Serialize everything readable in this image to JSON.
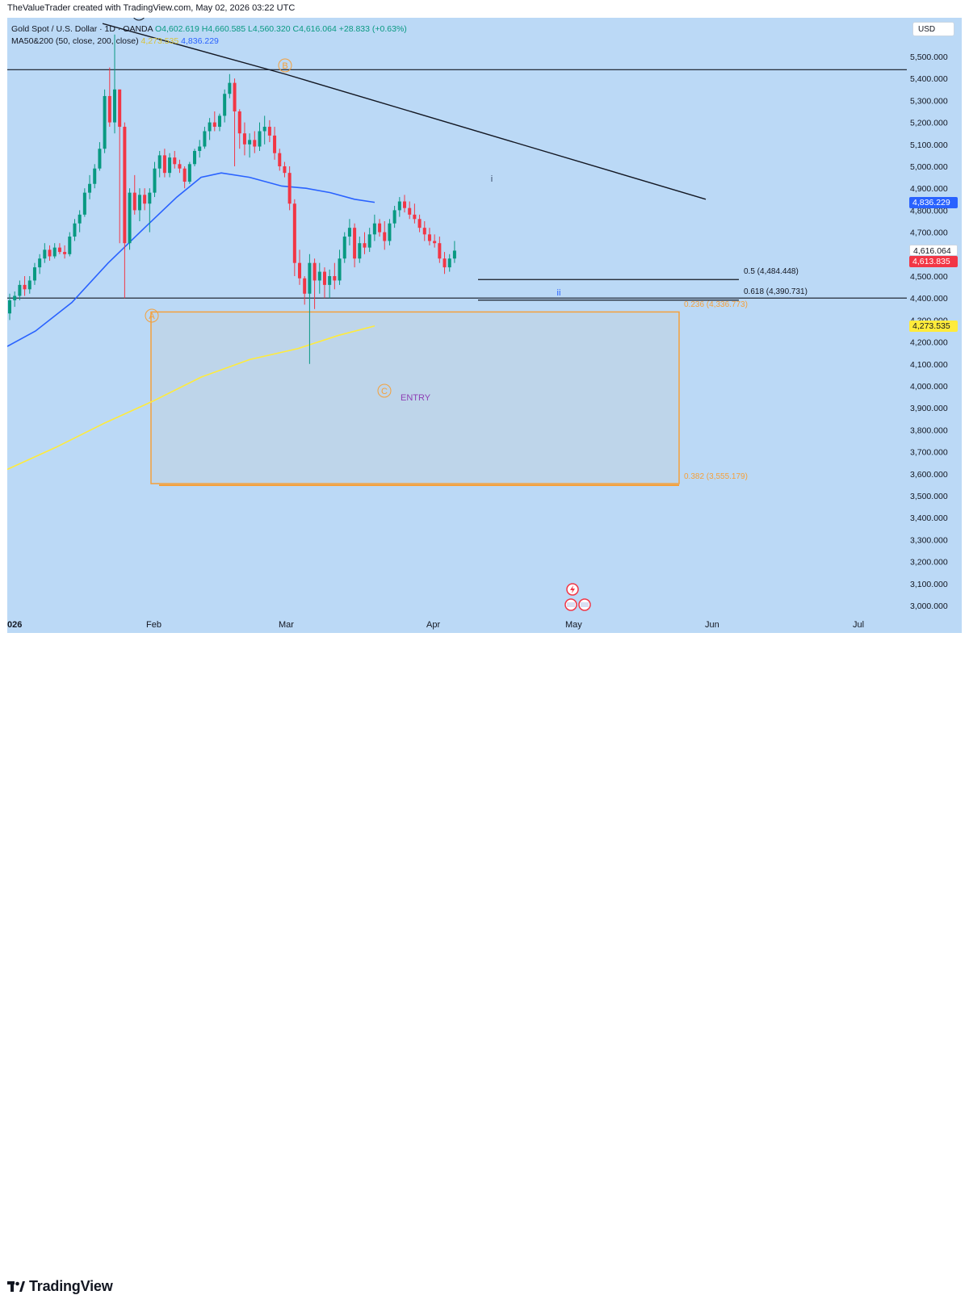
{
  "header": {
    "text": "TheValueTrader created with TradingView.com, May 02, 2026 03:22 UTC"
  },
  "legend": {
    "symbol": "Gold Spot / U.S. Dollar · 1D · OANDA",
    "open": "O4,602.619",
    "high": "H4,660.585",
    "low": "L4,560.320",
    "close": "C4,616.064",
    "change": "+28.833 (+0.63%)",
    "ma_label": "MA50&200 (50, close, 200, close)",
    "ma50_value": "4,273.535",
    "ma200_value": "4,836.229"
  },
  "currency_button": "USD",
  "price_axis": {
    "ticks": [
      "5,500.000",
      "5,400.000",
      "5,300.000",
      "5,200.000",
      "5,100.000",
      "5,000.000",
      "4,900.000",
      "4,800.000",
      "4,700.000",
      "4,600.000",
      "4,500.000",
      "4,400.000",
      "4,300.000",
      "4,200.000",
      "4,100.000",
      "4,000.000",
      "3,900.000",
      "3,800.000",
      "3,700.000",
      "3,600.000",
      "3,500.000",
      "3,400.000",
      "3,300.000",
      "3,200.000",
      "3,100.000",
      "3,000.000"
    ],
    "tags": [
      {
        "text": "4,836.229",
        "bg": "#2962ff",
        "fg": "#ffffff",
        "price": 4836.229
      },
      {
        "text": "4,616.064",
        "bg": "#ffffff",
        "fg": "#131722",
        "price": 4616.064
      },
      {
        "text": "4,613.835",
        "bg": "#f23645",
        "fg": "#ffffff",
        "price": 4566
      },
      {
        "text": "4,273.535",
        "bg": "#ffeb3b",
        "fg": "#131722",
        "price": 4273.535
      }
    ]
  },
  "time_axis": {
    "labels": [
      "026",
      "Feb",
      "Mar",
      "Apr",
      "May",
      "Jun",
      "Jul"
    ]
  },
  "annotations": {
    "fib_05": "0.5 (4,484.448)",
    "fib_0618": "0.618 (4,390.731)",
    "box_0236": "0.236 (4,336.773)",
    "box_0382": "0.382 (3,555.179)",
    "wave_A": "A",
    "wave_B": "B",
    "wave_C": "C",
    "wave_i": "i",
    "wave_ii": "ii",
    "entry": "ENTRY"
  },
  "footer": {
    "brand": "TradingView"
  },
  "colors": {
    "bg": "#bbd9f6",
    "up": "#089981",
    "down": "#f23645",
    "ma200": "#2962ff",
    "ma50": "#ffeb3b",
    "box": "#f5a03a"
  },
  "chart_data": {
    "type": "candlestick",
    "ylim": [
      2950,
      5650
    ],
    "x_labels": [
      "Feb",
      "Mar",
      "Apr",
      "May",
      "Jun",
      "Jul"
    ],
    "candles": [
      {
        "o": 4330,
        "h": 4420,
        "l": 4300,
        "c": 4390
      },
      {
        "o": 4390,
        "h": 4430,
        "l": 4360,
        "c": 4410
      },
      {
        "o": 4410,
        "h": 4480,
        "l": 4390,
        "c": 4460
      },
      {
        "o": 4460,
        "h": 4500,
        "l": 4410,
        "c": 4440
      },
      {
        "o": 4440,
        "h": 4500,
        "l": 4420,
        "c": 4480
      },
      {
        "o": 4480,
        "h": 4560,
        "l": 4460,
        "c": 4540
      },
      {
        "o": 4540,
        "h": 4600,
        "l": 4510,
        "c": 4580
      },
      {
        "o": 4580,
        "h": 4650,
        "l": 4560,
        "c": 4620
      },
      {
        "o": 4620,
        "h": 4640,
        "l": 4570,
        "c": 4590
      },
      {
        "o": 4590,
        "h": 4650,
        "l": 4580,
        "c": 4630
      },
      {
        "o": 4630,
        "h": 4650,
        "l": 4600,
        "c": 4610
      },
      {
        "o": 4610,
        "h": 4640,
        "l": 4580,
        "c": 4600
      },
      {
        "o": 4600,
        "h": 4700,
        "l": 4590,
        "c": 4680
      },
      {
        "o": 4680,
        "h": 4760,
        "l": 4660,
        "c": 4740
      },
      {
        "o": 4740,
        "h": 4800,
        "l": 4700,
        "c": 4780
      },
      {
        "o": 4780,
        "h": 4900,
        "l": 4770,
        "c": 4880
      },
      {
        "o": 4880,
        "h": 4960,
        "l": 4850,
        "c": 4920
      },
      {
        "o": 4920,
        "h": 5010,
        "l": 4900,
        "c": 4990
      },
      {
        "o": 4990,
        "h": 5110,
        "l": 4980,
        "c": 5080
      },
      {
        "o": 5080,
        "h": 5350,
        "l": 5060,
        "c": 5320
      },
      {
        "o": 5320,
        "h": 5450,
        "l": 5180,
        "c": 5200
      },
      {
        "o": 5200,
        "h": 5600,
        "l": 5150,
        "c": 5350
      },
      {
        "o": 5350,
        "h": 5350,
        "l": 4650,
        "c": 5180
      },
      {
        "o": 5180,
        "h": 5200,
        "l": 4400,
        "c": 4650
      },
      {
        "o": 4650,
        "h": 4900,
        "l": 4620,
        "c": 4880
      },
      {
        "o": 4880,
        "h": 4960,
        "l": 4780,
        "c": 4800
      },
      {
        "o": 4800,
        "h": 4900,
        "l": 4750,
        "c": 4870
      },
      {
        "o": 4870,
        "h": 4900,
        "l": 4800,
        "c": 4830
      },
      {
        "o": 4830,
        "h": 4900,
        "l": 4700,
        "c": 4880
      },
      {
        "o": 4880,
        "h": 5020,
        "l": 4860,
        "c": 4990
      },
      {
        "o": 4990,
        "h": 5070,
        "l": 4950,
        "c": 5050
      },
      {
        "o": 5050,
        "h": 5080,
        "l": 4950,
        "c": 4970
      },
      {
        "o": 4970,
        "h": 5060,
        "l": 4950,
        "c": 5040
      },
      {
        "o": 5040,
        "h": 5070,
        "l": 4990,
        "c": 5010
      },
      {
        "o": 5010,
        "h": 5030,
        "l": 4970,
        "c": 4990
      },
      {
        "o": 4990,
        "h": 5000,
        "l": 4900,
        "c": 4930
      },
      {
        "o": 4930,
        "h": 5020,
        "l": 4920,
        "c": 5010
      },
      {
        "o": 5010,
        "h": 5080,
        "l": 5000,
        "c": 5070
      },
      {
        "o": 5070,
        "h": 5120,
        "l": 5040,
        "c": 5090
      },
      {
        "o": 5090,
        "h": 5180,
        "l": 5080,
        "c": 5160
      },
      {
        "o": 5160,
        "h": 5220,
        "l": 5120,
        "c": 5200
      },
      {
        "o": 5200,
        "h": 5250,
        "l": 5160,
        "c": 5180
      },
      {
        "o": 5180,
        "h": 5240,
        "l": 5160,
        "c": 5230
      },
      {
        "o": 5230,
        "h": 5350,
        "l": 5200,
        "c": 5330
      },
      {
        "o": 5330,
        "h": 5420,
        "l": 5310,
        "c": 5380
      },
      {
        "o": 5380,
        "h": 5400,
        "l": 5000,
        "c": 5250
      },
      {
        "o": 5250,
        "h": 5260,
        "l": 5080,
        "c": 5150
      },
      {
        "o": 5150,
        "h": 5200,
        "l": 5050,
        "c": 5100
      },
      {
        "o": 5100,
        "h": 5150,
        "l": 5040,
        "c": 5120
      },
      {
        "o": 5120,
        "h": 5160,
        "l": 5060,
        "c": 5090
      },
      {
        "o": 5090,
        "h": 5200,
        "l": 5070,
        "c": 5160
      },
      {
        "o": 5160,
        "h": 5230,
        "l": 5100,
        "c": 5180
      },
      {
        "o": 5180,
        "h": 5210,
        "l": 5110,
        "c": 5140
      },
      {
        "o": 5140,
        "h": 5180,
        "l": 5030,
        "c": 5060
      },
      {
        "o": 5060,
        "h": 5080,
        "l": 4980,
        "c": 5000
      },
      {
        "o": 5000,
        "h": 5020,
        "l": 4950,
        "c": 4970
      },
      {
        "o": 4970,
        "h": 5000,
        "l": 4800,
        "c": 4830
      },
      {
        "o": 4830,
        "h": 4850,
        "l": 4500,
        "c": 4560
      },
      {
        "o": 4560,
        "h": 4620,
        "l": 4460,
        "c": 4490
      },
      {
        "o": 4490,
        "h": 4500,
        "l": 4370,
        "c": 4420
      },
      {
        "o": 4420,
        "h": 4600,
        "l": 4100,
        "c": 4560
      },
      {
        "o": 4560,
        "h": 4580,
        "l": 4350,
        "c": 4480
      },
      {
        "o": 4480,
        "h": 4560,
        "l": 4420,
        "c": 4520
      },
      {
        "o": 4520,
        "h": 4540,
        "l": 4400,
        "c": 4460
      },
      {
        "o": 4460,
        "h": 4530,
        "l": 4400,
        "c": 4500
      },
      {
        "o": 4500,
        "h": 4560,
        "l": 4440,
        "c": 4480
      },
      {
        "o": 4480,
        "h": 4620,
        "l": 4460,
        "c": 4580
      },
      {
        "o": 4580,
        "h": 4700,
        "l": 4560,
        "c": 4680
      },
      {
        "o": 4680,
        "h": 4760,
        "l": 4640,
        "c": 4720
      },
      {
        "o": 4720,
        "h": 4740,
        "l": 4540,
        "c": 4580
      },
      {
        "o": 4580,
        "h": 4680,
        "l": 4560,
        "c": 4650
      },
      {
        "o": 4650,
        "h": 4700,
        "l": 4600,
        "c": 4630
      },
      {
        "o": 4630,
        "h": 4720,
        "l": 4610,
        "c": 4690
      },
      {
        "o": 4690,
        "h": 4780,
        "l": 4660,
        "c": 4740
      },
      {
        "o": 4740,
        "h": 4760,
        "l": 4680,
        "c": 4700
      },
      {
        "o": 4700,
        "h": 4750,
        "l": 4620,
        "c": 4660
      },
      {
        "o": 4660,
        "h": 4760,
        "l": 4640,
        "c": 4740
      },
      {
        "o": 4740,
        "h": 4820,
        "l": 4720,
        "c": 4800
      },
      {
        "o": 4800,
        "h": 4860,
        "l": 4770,
        "c": 4840
      },
      {
        "o": 4840,
        "h": 4870,
        "l": 4790,
        "c": 4810
      },
      {
        "o": 4810,
        "h": 4840,
        "l": 4760,
        "c": 4780
      },
      {
        "o": 4780,
        "h": 4830,
        "l": 4740,
        "c": 4760
      },
      {
        "o": 4760,
        "h": 4780,
        "l": 4700,
        "c": 4720
      },
      {
        "o": 4720,
        "h": 4750,
        "l": 4660,
        "c": 4690
      },
      {
        "o": 4690,
        "h": 4720,
        "l": 4640,
        "c": 4660
      },
      {
        "o": 4660,
        "h": 4690,
        "l": 4630,
        "c": 4650
      },
      {
        "o": 4650,
        "h": 4680,
        "l": 4560,
        "c": 4580
      },
      {
        "o": 4580,
        "h": 4610,
        "l": 4510,
        "c": 4540
      },
      {
        "o": 4540,
        "h": 4600,
        "l": 4520,
        "c": 4580
      },
      {
        "o": 4580,
        "h": 4660,
        "l": 4560,
        "c": 4616
      }
    ],
    "ma200": [
      [
        0,
        4180
      ],
      [
        35,
        4250
      ],
      [
        80,
        4380
      ],
      [
        125,
        4560
      ],
      [
        170,
        4720
      ],
      [
        210,
        4860
      ],
      [
        240,
        4950
      ],
      [
        265,
        4970
      ],
      [
        300,
        4950
      ],
      [
        340,
        4910
      ],
      [
        370,
        4900
      ],
      [
        400,
        4880
      ],
      [
        430,
        4850
      ],
      [
        455,
        4836
      ]
    ],
    "ma50": [
      [
        0,
        3620
      ],
      [
        60,
        3720
      ],
      [
        120,
        3830
      ],
      [
        180,
        3930
      ],
      [
        240,
        4040
      ],
      [
        300,
        4120
      ],
      [
        360,
        4170
      ],
      [
        410,
        4230
      ],
      [
        455,
        4273
      ]
    ],
    "trendline": [
      [
        118,
        5650
      ],
      [
        344,
        5420
      ],
      [
        865,
        4850
      ]
    ],
    "hlines": [
      {
        "y": 5440,
        "x1": 0,
        "x2": 1114,
        "color": "#131722"
      },
      {
        "y": 4400,
        "x1": 0,
        "x2": 1114,
        "color": "#131722"
      },
      {
        "y": 4484.448,
        "x1": 583,
        "x2": 906,
        "color": "#131722"
      },
      {
        "y": 4390.731,
        "x1": 583,
        "x2": 906,
        "color": "#131722"
      }
    ],
    "box": {
      "x1": 178,
      "x2": 832,
      "top": 4336.773,
      "bottom": 3555.179
    }
  }
}
